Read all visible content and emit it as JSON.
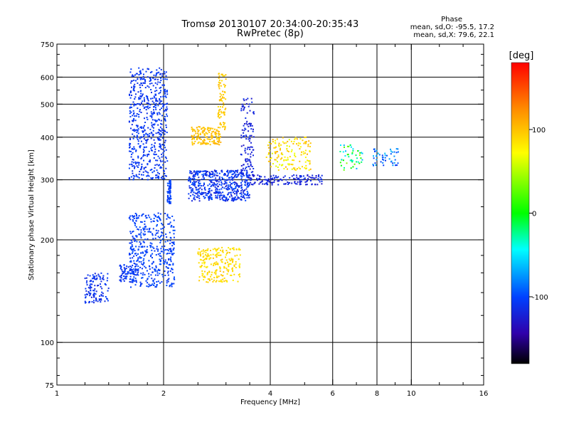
{
  "chart_data": {
    "type": "scatter",
    "title": "Tromsø 20130107 20:34:00-20:35:43",
    "subtitle": "RwPretec (8p)",
    "xlabel": "Frequency [MHz]",
    "ylabel": "Stationary phase Virtual Height [km]",
    "x_scale": "log",
    "y_scale": "log",
    "xlim": [
      1,
      16
    ],
    "ylim": [
      75,
      750
    ],
    "x_ticks": [
      1,
      2,
      4,
      6,
      8,
      10,
      16
    ],
    "y_ticks": [
      75,
      100,
      200,
      300,
      400,
      500,
      600,
      750
    ],
    "x_minor_ticks": [
      1.2,
      1.4,
      1.6,
      1.8,
      2.5,
      3,
      3.5,
      5,
      7,
      9,
      12,
      14
    ],
    "y_minor_ticks": [
      80,
      90,
      120,
      140,
      160,
      180,
      250,
      350,
      450,
      550,
      650,
      700
    ],
    "grid_x": [
      2,
      4,
      6,
      8,
      10
    ],
    "grid_y": [
      100,
      200,
      300,
      400,
      500,
      600
    ],
    "colorbar": {
      "label": "[deg]",
      "min": -180,
      "max": 180,
      "ticks": [
        100,
        0,
        -100
      ],
      "colors": [
        "#ff0000",
        "#ff8800",
        "#ffff00",
        "#00ff00",
        "#00ffff",
        "#0040ff",
        "#3000aa",
        "#000000"
      ]
    },
    "phase_stats": {
      "heading": "Phase",
      "line_o": "mean, sd,O: -95.5, 17.2",
      "line_x": "mean, sd,X:  79.6, 22.1"
    },
    "clusters": [
      {
        "f": [
          1.6,
          2.05
        ],
        "h": [
          300,
          640
        ],
        "ph": [
          -115,
          -100
        ],
        "n": 600
      },
      {
        "f": [
          2.05,
          2.1
        ],
        "h": [
          255,
          300
        ],
        "ph": [
          -110,
          -95
        ],
        "n": 60
      },
      {
        "f": [
          2.35,
          3.5
        ],
        "h": [
          260,
          320
        ],
        "ph": [
          -125,
          -95
        ],
        "n": 500
      },
      {
        "f": [
          3.3,
          3.6
        ],
        "h": [
          300,
          520
        ],
        "ph": [
          -130,
          -110
        ],
        "n": 120
      },
      {
        "f": [
          3.5,
          5.6
        ],
        "h": [
          290,
          310
        ],
        "ph": [
          -130,
          -110
        ],
        "n": 150
      },
      {
        "f": [
          2.4,
          2.9
        ],
        "h": [
          380,
          430
        ],
        "ph": [
          90,
          110
        ],
        "n": 150
      },
      {
        "f": [
          2.85,
          3.0
        ],
        "h": [
          420,
          620
        ],
        "ph": [
          85,
          105
        ],
        "n": 80
      },
      {
        "f": [
          1.6,
          2.15
        ],
        "h": [
          145,
          240
        ],
        "ph": [
          -110,
          -95
        ],
        "n": 450
      },
      {
        "f": [
          1.5,
          1.7
        ],
        "h": [
          150,
          170
        ],
        "ph": [
          -115,
          -100
        ],
        "n": 80
      },
      {
        "f": [
          1.2,
          1.4
        ],
        "h": [
          130,
          160
        ],
        "ph": [
          -120,
          -100
        ],
        "n": 120
      },
      {
        "f": [
          2.5,
          3.3
        ],
        "h": [
          150,
          190
        ],
        "ph": [
          75,
          100
        ],
        "n": 220
      },
      {
        "f": [
          3.9,
          5.2
        ],
        "h": [
          320,
          400
        ],
        "ph": [
          60,
          110
        ],
        "n": 150
      },
      {
        "f": [
          6.3,
          7.3
        ],
        "h": [
          320,
          380
        ],
        "ph": [
          -80,
          40
        ],
        "n": 50
      },
      {
        "f": [
          7.8,
          9.2
        ],
        "h": [
          330,
          370
        ],
        "ph": [
          -110,
          -60
        ],
        "n": 50
      }
    ]
  }
}
